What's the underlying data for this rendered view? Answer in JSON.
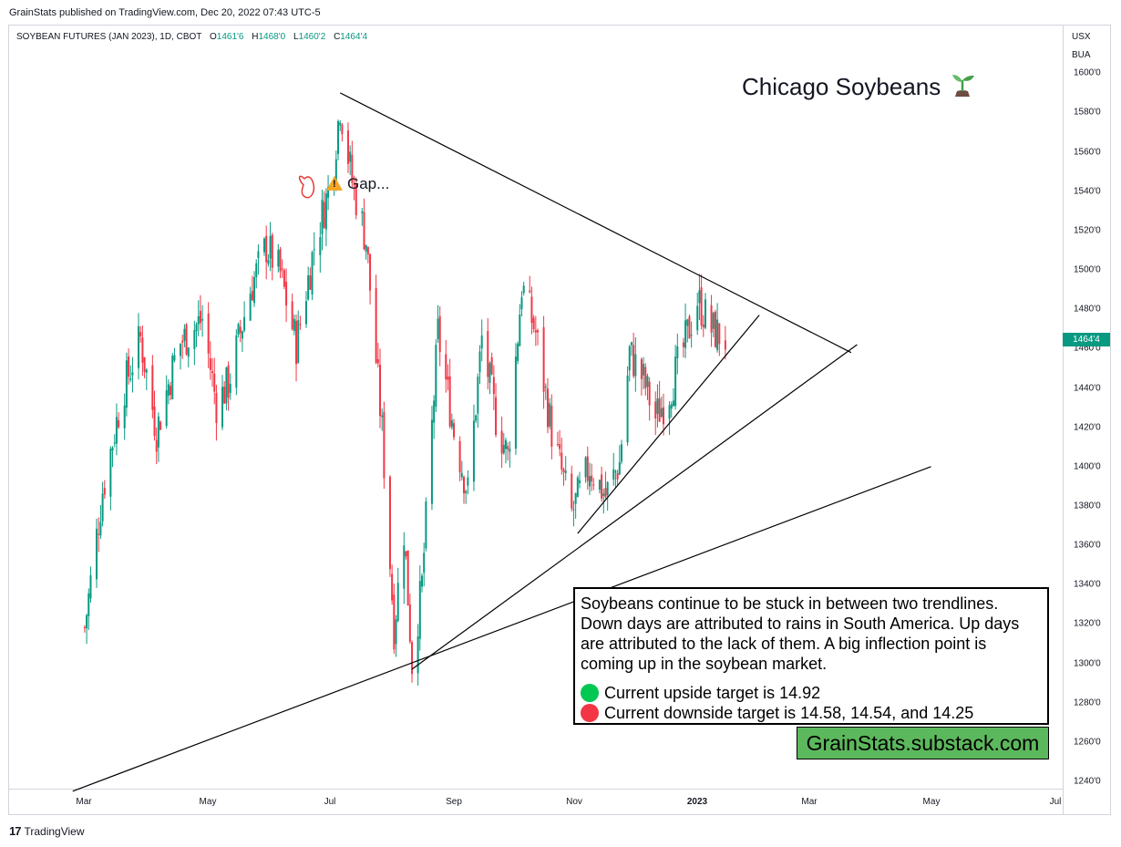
{
  "header": {
    "published_line": "GrainStats published on TradingView.com, Dec 20, 2022 07:43 UTC-5"
  },
  "symbol": {
    "name": "SOYBEAN FUTURES (JAN 2023), 1D, CBOT",
    "open_label": "O",
    "open": "1461'6",
    "high_label": "H",
    "high": "1468'0",
    "low_label": "L",
    "low": "1460'2",
    "close_label": "C",
    "close": "1464'4"
  },
  "price_axis": {
    "currency": "USX",
    "unit": "BUA",
    "last_price_tag": "1464'4",
    "colors": {
      "up": "#089981",
      "down": "#f23645",
      "tag": "#089981"
    }
  },
  "annotations": {
    "title": "Chicago Soybeans",
    "gap_note": "Gap...",
    "commentary": "Soybeans continue to be stuck in between two trendlines.  Down days are attributed to rains in South America.  Up days are attributed to the lack of them.  A big inflection point is coming up in the soybean market.",
    "upside_target": "Current upside target is 14.92",
    "downside_target": "Current downside target is 14.58, 14.54, and 14.25",
    "substack": "GrainStats.substack.com",
    "warning_icon": "warning-icon",
    "sprout_icon": "seedling-icon"
  },
  "footer": {
    "brand": "TradingView",
    "logo_mark": "17"
  },
  "chart_data": {
    "type": "candlestick",
    "instrument": "Soybean Futures (Jan 2023), CBOT, daily",
    "y_ticks": [
      "1240'0",
      "1260'0",
      "1280'0",
      "1300'0",
      "1320'0",
      "1340'0",
      "1360'0",
      "1380'0",
      "1400'0",
      "1420'0",
      "1440'0",
      "1460'0",
      "1480'0",
      "1500'0",
      "1520'0",
      "1540'0",
      "1560'0",
      "1580'0",
      "1600'0"
    ],
    "x_ticks": [
      "Mar",
      "May",
      "Jul",
      "Sep",
      "Nov",
      "2023",
      "Mar",
      "May",
      "Jul"
    ],
    "bold_x_tick": "2023",
    "ylim": [
      1236,
      1610
    ],
    "grid": false,
    "series": [
      {
        "name": "Soybean Futures (Jan 2023)",
        "points": [
          {
            "date": "2022-02-01",
            "price": 1318
          },
          {
            "date": "2022-02-10",
            "price": 1388
          },
          {
            "date": "2022-02-20",
            "price": 1438
          },
          {
            "date": "2022-03-01",
            "price": 1465
          },
          {
            "date": "2022-03-09",
            "price": 1418
          },
          {
            "date": "2022-03-20",
            "price": 1462
          },
          {
            "date": "2022-04-01",
            "price": 1475
          },
          {
            "date": "2022-04-08",
            "price": 1432
          },
          {
            "date": "2022-04-14",
            "price": 1442
          },
          {
            "date": "2022-04-25",
            "price": 1490
          },
          {
            "date": "2022-05-03",
            "price": 1512
          },
          {
            "date": "2022-05-10",
            "price": 1498
          },
          {
            "date": "2022-05-18",
            "price": 1462
          },
          {
            "date": "2022-05-27",
            "price": 1512
          },
          {
            "date": "2022-06-05",
            "price": 1548
          },
          {
            "date": "2022-06-09",
            "price": 1584
          },
          {
            "date": "2022-06-15",
            "price": 1545
          },
          {
            "date": "2022-06-22",
            "price": 1515
          },
          {
            "date": "2022-06-30",
            "price": 1418
          },
          {
            "date": "2022-07-06",
            "price": 1318
          },
          {
            "date": "2022-07-11",
            "price": 1368
          },
          {
            "date": "2022-07-15",
            "price": 1300
          },
          {
            "date": "2022-07-20",
            "price": 1340
          },
          {
            "date": "2022-07-28",
            "price": 1468
          },
          {
            "date": "2022-08-05",
            "price": 1418
          },
          {
            "date": "2022-08-12",
            "price": 1387
          },
          {
            "date": "2022-08-19",
            "price": 1465
          },
          {
            "date": "2022-08-26",
            "price": 1425
          },
          {
            "date": "2022-09-01",
            "price": 1405
          },
          {
            "date": "2022-09-08",
            "price": 1492
          },
          {
            "date": "2022-09-15",
            "price": 1468
          },
          {
            "date": "2022-09-23",
            "price": 1418
          },
          {
            "date": "2022-10-03",
            "price": 1376
          },
          {
            "date": "2022-10-12",
            "price": 1400
          },
          {
            "date": "2022-10-20",
            "price": 1385
          },
          {
            "date": "2022-10-27",
            "price": 1402
          },
          {
            "date": "2022-11-01",
            "price": 1458
          },
          {
            "date": "2022-11-08",
            "price": 1444
          },
          {
            "date": "2022-11-14",
            "price": 1425
          },
          {
            "date": "2022-11-21",
            "price": 1438
          },
          {
            "date": "2022-11-28",
            "price": 1460
          },
          {
            "date": "2022-12-05",
            "price": 1485
          },
          {
            "date": "2022-12-12",
            "price": 1470
          },
          {
            "date": "2022-12-19",
            "price": 1464.5
          }
        ]
      }
    ],
    "trendlines": [
      {
        "from": {
          "date": "2022-06-09",
          "price": 1590
        },
        "to": {
          "date": "2023-02-20",
          "price": 1458
        }
      },
      {
        "from": {
          "date": "2022-07-15",
          "price": 1297
        },
        "to": {
          "date": "2023-02-23",
          "price": 1462
        }
      },
      {
        "from": {
          "date": "2022-10-06",
          "price": 1366
        },
        "to": {
          "date": "2023-01-05",
          "price": 1477
        }
      },
      {
        "from": {
          "date": "2022-01-26",
          "price": 1235
        },
        "to": {
          "date": "2023-04-01",
          "price": 1400
        }
      }
    ]
  }
}
